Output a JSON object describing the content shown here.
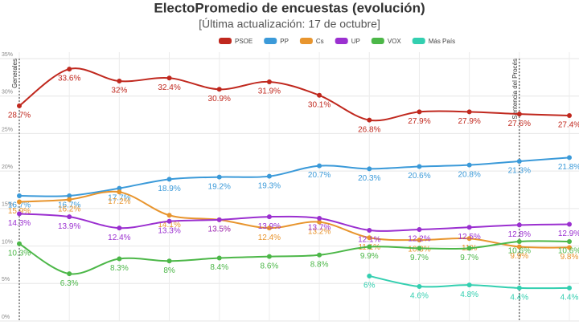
{
  "chart_data": {
    "type": "line",
    "title": "ElectoPromedio de encuestas (evolución)",
    "subtitle": "[Última actualización: 17 de octubre]",
    "categories": [
      null,
      null,
      null,
      null,
      null,
      null,
      null,
      null,
      null,
      null,
      null,
      null
    ],
    "ylim": [
      0,
      35
    ],
    "yticks": [
      {
        "value": 0,
        "label": "0%"
      },
      {
        "value": 5,
        "label": "5%"
      },
      {
        "value": 10,
        "label": "10%"
      },
      {
        "value": 15,
        "label": "15%"
      },
      {
        "value": 20,
        "label": "20%"
      },
      {
        "value": 25,
        "label": "25%"
      },
      {
        "value": 30,
        "label": "30%"
      },
      {
        "value": 35,
        "label": "35%"
      }
    ],
    "grid": true,
    "legend": "top",
    "annotations": [
      {
        "label": "Generales",
        "index": 0
      },
      {
        "label": "Sentencia del Procés",
        "index": 10
      }
    ],
    "series": [
      {
        "name": "PSOE",
        "color": "#c0281e",
        "values": [
          28.7,
          33.6,
          32,
          32.4,
          30.9,
          31.9,
          30.1,
          26.8,
          27.9,
          27.9,
          27.6,
          27.4
        ],
        "value_labels": [
          "28.7%",
          "33.6%",
          "32%",
          "32.4%",
          "30.9%",
          "31.9%",
          "30.1%",
          "26.8%",
          "27.9%",
          "27.9%",
          "27.6%",
          "27.4%"
        ]
      },
      {
        "name": "PP",
        "color": "#3b9ad9",
        "values": [
          16.7,
          16.7,
          17.7,
          18.9,
          19.2,
          19.3,
          20.7,
          20.3,
          20.6,
          20.8,
          21.3,
          21.8
        ],
        "value_labels": [
          "16.7%",
          "16.7%",
          "17.7%",
          "18.9%",
          "19.2%",
          "19.3%",
          "20.7%",
          "20.3%",
          "20.6%",
          "20.8%",
          "21.3%",
          "21.8%"
        ]
      },
      {
        "name": "Cs",
        "color": "#e8952e",
        "values": [
          15.9,
          16.2,
          17.2,
          14.1,
          13.5,
          12.4,
          13.2,
          11.1,
          10.8,
          11,
          9.9,
          9.8
        ],
        "value_labels": [
          "15.9%",
          "16.2%",
          "17.2%",
          "14.1%",
          "13.5%",
          "12.4%",
          "13.2%",
          "11.1%",
          "10.8%",
          "11%",
          "9.9%",
          "9.8%"
        ]
      },
      {
        "name": "UP",
        "color": "#9b30d0",
        "values": [
          14.3,
          13.9,
          12.4,
          13.3,
          13.5,
          13.9,
          13.7,
          12.1,
          12.2,
          12.5,
          12.8,
          12.9
        ],
        "value_labels": [
          "14.3%",
          "13.9%",
          "12.4%",
          "13.3%",
          "13.5%",
          "13.9%",
          "13.7%",
          "12.1%",
          "12.2%",
          "12.5%",
          "12.8%",
          "12.9%"
        ]
      },
      {
        "name": "VOX",
        "color": "#4cb748",
        "values": [
          10.3,
          6.3,
          8.3,
          8,
          8.4,
          8.6,
          8.8,
          9.9,
          9.7,
          9.7,
          10.6,
          10.6
        ],
        "value_labels": [
          "10.3%",
          "6.3%",
          "8.3%",
          "8%",
          "8.4%",
          "8.6%",
          "8.8%",
          "9.9%",
          "9.7%",
          "9.7%",
          "10.6%",
          "10.6%"
        ]
      },
      {
        "name": "Más País",
        "color": "#33cfb0",
        "values": [
          null,
          null,
          null,
          null,
          null,
          null,
          null,
          6,
          4.6,
          4.8,
          4.4,
          4.4
        ],
        "value_labels": [
          null,
          null,
          null,
          null,
          null,
          null,
          null,
          "6%",
          "4.6%",
          "4.8%",
          "4.4%",
          "4.4%"
        ]
      }
    ]
  }
}
